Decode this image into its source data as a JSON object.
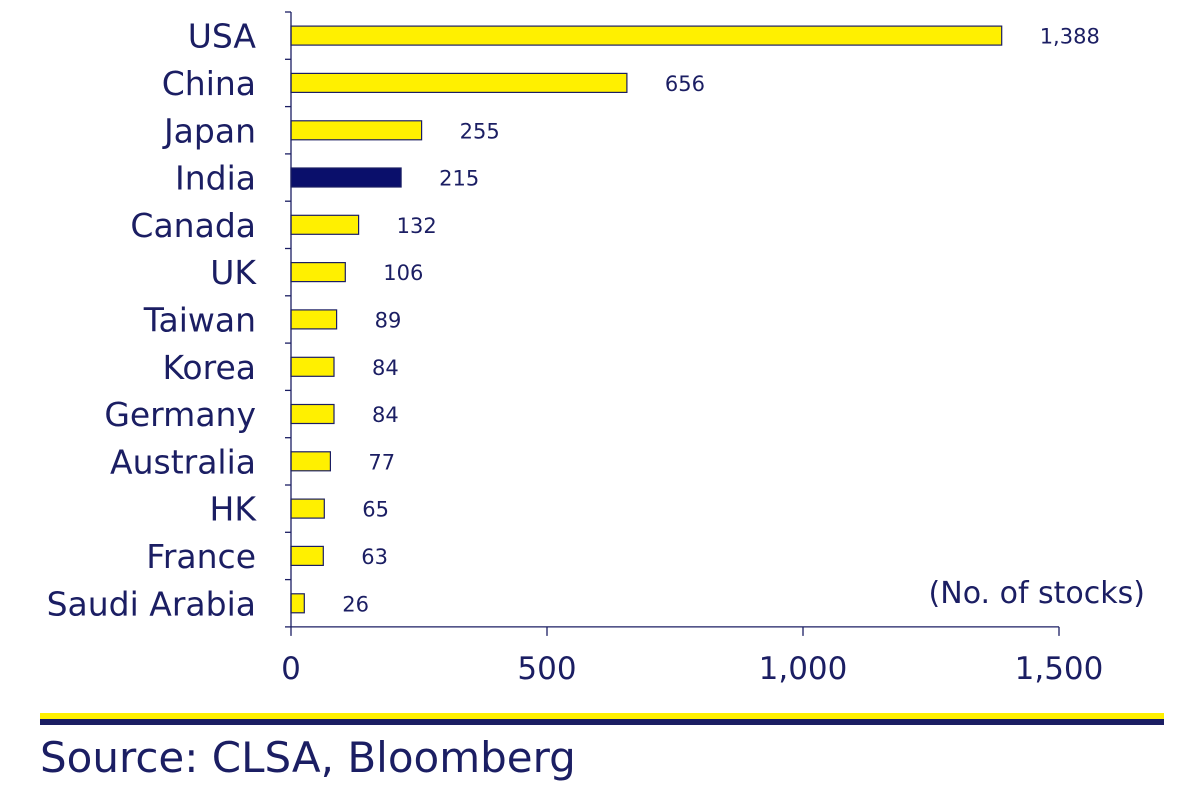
{
  "chart_data": {
    "type": "bar",
    "orientation": "horizontal",
    "categories": [
      "USA",
      "China",
      "Japan",
      "India",
      "Canada",
      "UK",
      "Taiwan",
      "Korea",
      "Germany",
      "Australia",
      "HK",
      "France",
      "Saudi Arabia"
    ],
    "values": [
      1388,
      656,
      255,
      215,
      132,
      106,
      89,
      84,
      84,
      77,
      65,
      63,
      26
    ],
    "value_labels": [
      "1,388",
      "656",
      "255",
      "215",
      "132",
      "106",
      "89",
      "84",
      "84",
      "77",
      "65",
      "63",
      "26"
    ],
    "highlight_category": "India",
    "x_ticks": [
      0,
      500,
      1000,
      1500
    ],
    "x_tick_labels": [
      "0",
      "500",
      "1,000",
      "1,500"
    ],
    "xlim": [
      0,
      1500
    ],
    "unit_label": "(No. of stocks)",
    "grid": false,
    "colors": {
      "bar": "#fff000",
      "bar_outline": "#1b1e63",
      "highlight": "#0a0f6b",
      "text": "#1b1e63",
      "axis": "#1b1e63"
    }
  },
  "footer": {
    "source": "Source: CLSA, Bloomberg",
    "rule_colors": {
      "top": "#fff000",
      "bottom": "#1b1e63"
    }
  }
}
